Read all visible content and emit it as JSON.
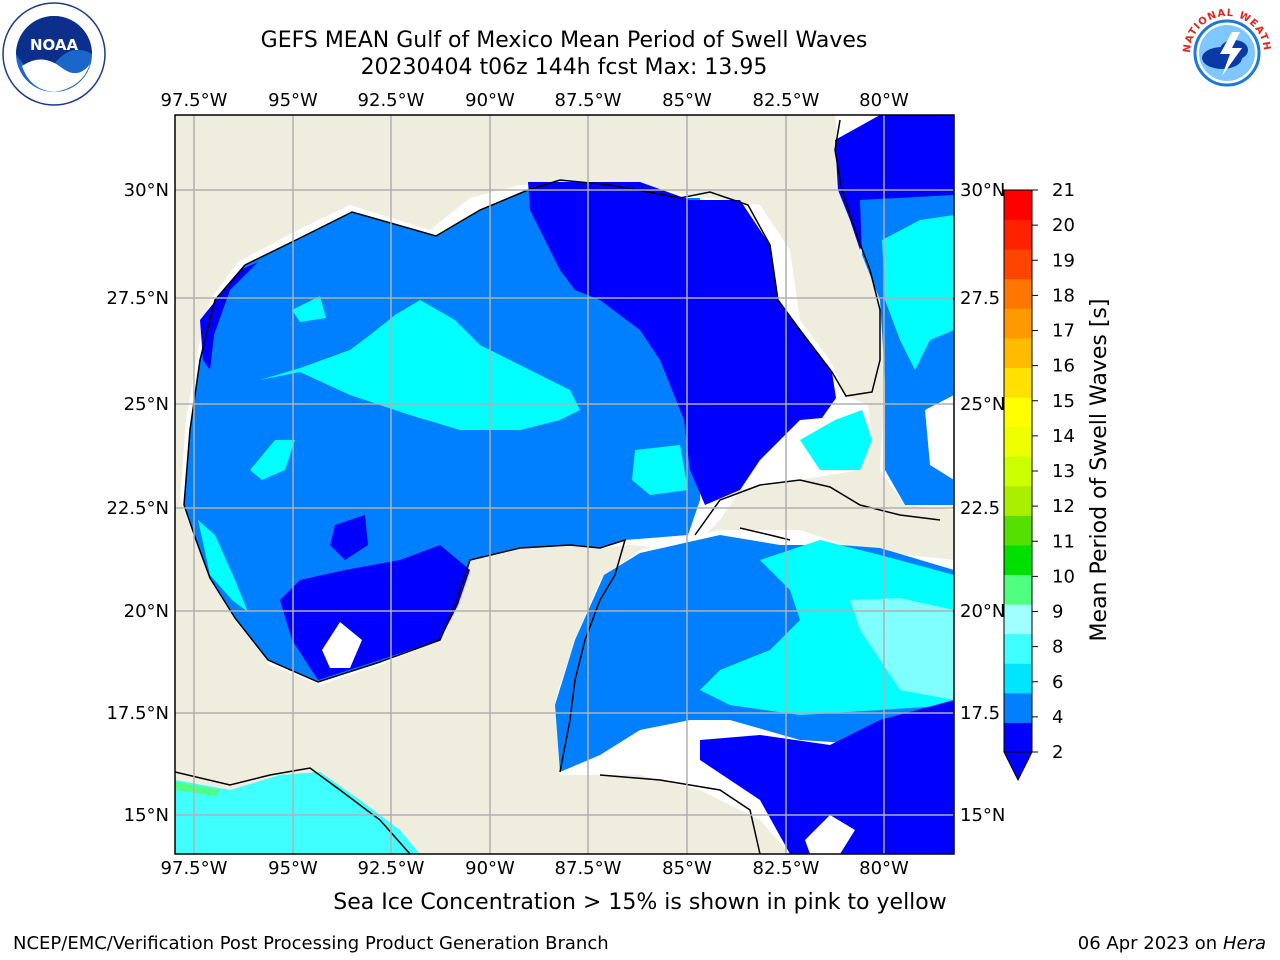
{
  "title_line1": "GEFS MEAN Gulf of Mexico Mean Period of Swell Waves",
  "title_line2": "20230404 t06z 144h fcst   Max: 13.95",
  "note": "Sea Ice Concentration > 15% is shown in pink to yellow",
  "footer_left": "NCEP/EMC/Verification Post Processing Product Generation Branch",
  "footer_date": "06 Apr 2023 on ",
  "footer_host": "Hera",
  "logos": {
    "left": "NOAA",
    "left_ring_text": "NATIONAL OCEANIC AND ATMOSPHERIC ADMINISTRATION · U.S. DEPARTMENT OF COMMERCE",
    "right_ring_text": "NATIONAL WEATHER SERVICE"
  },
  "map": {
    "lon_labels": [
      "97.5°W",
      "95°W",
      "92.5°W",
      "90°W",
      "87.5°W",
      "85°W",
      "82.5°W",
      "80°W"
    ],
    "lat_labels_left": [
      "30°N",
      "27.5°N",
      "25°N",
      "22.5°N",
      "20°N",
      "17.5°N",
      "15°N"
    ],
    "lat_labels_right": [
      "30°N",
      "27.5",
      "25°N",
      "22.5",
      "20°N",
      "17.5",
      "15°N"
    ],
    "colors": {
      "land": "#eeedde",
      "grid": "#b0b0b0",
      "ocean_low": "#0000ff",
      "ocean_mid": "#0080ff",
      "ocean_high": "#00ffff",
      "ocean_pale": "#7fffff"
    }
  },
  "colorbar": {
    "label": "Mean Period of Swell Waves [s]",
    "ticks": [
      "21",
      "20",
      "19",
      "18",
      "17",
      "16",
      "15",
      "14",
      "13",
      "12",
      "11",
      "10",
      "9",
      "8",
      "6",
      "4",
      "2"
    ],
    "colors": [
      "#0000ff",
      "#0080ff",
      "#00e5ff",
      "#40ffff",
      "#a0ffff",
      "#50ff80",
      "#00e000",
      "#55e000",
      "#aaee00",
      "#ccff00",
      "#eeff00",
      "#ffff00",
      "#ffe000",
      "#ffbb00",
      "#ff9900",
      "#ff7700",
      "#ff4400",
      "#ff2200",
      "#ff0000"
    ]
  }
}
